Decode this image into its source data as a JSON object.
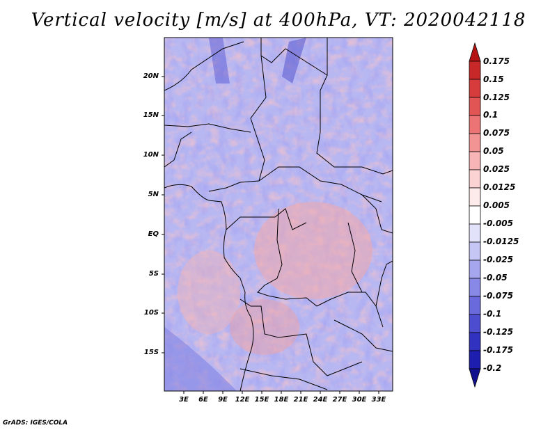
{
  "title": "Vertical velocity [m/s] at 400hPa, VT: 2020042118",
  "lat_labels": [
    "20N",
    "15N",
    "10N",
    "5N",
    "EQ",
    "5S",
    "10S",
    "15S"
  ],
  "lon_labels": [
    "3E",
    "6E",
    "9E",
    "12E",
    "15E",
    "18E",
    "21E",
    "24E",
    "27E",
    "30E",
    "33E"
  ],
  "colorbar": {
    "levels": [
      "0.175",
      "0.15",
      "0.125",
      "0.1",
      "0.075",
      "0.05",
      "0.025",
      "0.0125",
      "0.005",
      "-0.005",
      "-0.0125",
      "-0.025",
      "-0.05",
      "-0.075",
      "-0.1",
      "-0.125",
      "-0.175",
      "-0.2"
    ],
    "colors": [
      "#b41414",
      "#c82828",
      "#d73c3c",
      "#e25555",
      "#ec7474",
      "#f29494",
      "#f7b5b5",
      "#fbd3d3",
      "#fdeaea",
      "#ffffff",
      "#e2e2fb",
      "#c6c6f5",
      "#a6a6ee",
      "#8888e6",
      "#6a6adc",
      "#4d4dd0",
      "#3232c0",
      "#1e1eae",
      "#10108f"
    ]
  },
  "credit": "GrADS: IGES/COLA"
}
